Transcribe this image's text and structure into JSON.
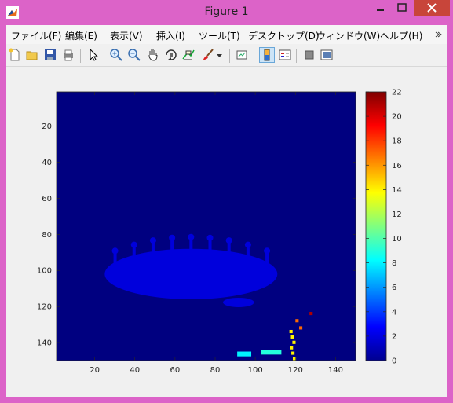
{
  "window": {
    "title": "Figure 1",
    "controls": [
      "minimize",
      "maximize",
      "close"
    ],
    "frame_color": "#dc63c8",
    "close_color": "#c8453a"
  },
  "menu": {
    "items": [
      "ファイル(F)",
      "編集(E)",
      "表示(V)",
      "挿入(I)",
      "ツール(T)",
      "デスクトップ(D)",
      "ウィンドウ(W)",
      "ヘルプ(H)"
    ],
    "overflow_icon": "chevron-icon"
  },
  "toolbar": {
    "icons": [
      "new-figure-icon",
      "open-file-icon",
      "save-icon",
      "print-icon",
      "edit-plot-arrow-icon",
      "zoom-in-icon",
      "zoom-out-icon",
      "pan-hand-icon",
      "rotate-3d-icon",
      "data-cursor-icon",
      "brush-icon",
      "brush-dropdown-icon",
      "link-plot-icon",
      "insert-colorbar-icon",
      "insert-legend-icon",
      "hide-plot-tools-icon",
      "show-plot-tools-icon"
    ],
    "active": "insert-colorbar-icon"
  },
  "chart_data": {
    "type": "heatmap",
    "title": "",
    "xlabel": "",
    "ylabel": "",
    "x_ticks": [
      "20",
      "40",
      "60",
      "80",
      "100",
      "120",
      "140"
    ],
    "y_ticks": [
      "20",
      "40",
      "60",
      "80",
      "100",
      "120",
      "140"
    ],
    "xlim": [
      1,
      150
    ],
    "ylim": [
      1,
      150
    ],
    "y_direction": "reversed",
    "colormap": "jet",
    "clim": [
      0,
      22
    ],
    "colorbar_ticks": [
      "0",
      "2",
      "4",
      "6",
      "8",
      "10",
      "12",
      "14",
      "16",
      "18",
      "20",
      "22"
    ],
    "background_value": 0,
    "regions": [
      {
        "name": "main-blob",
        "value": 2,
        "x_center": 68,
        "y_center": 102,
        "x_halfwidth": 43,
        "y_halfwidth": 14
      },
      {
        "name": "bottom-teal-strip",
        "value": 8,
        "x": [
          91,
          97
        ],
        "y": [
          145,
          146
        ]
      },
      {
        "name": "bottom-lightgreen-strip",
        "value": 9,
        "x": [
          103,
          112
        ],
        "y": [
          144,
          145
        ]
      },
      {
        "name": "red-point",
        "value": 21,
        "x": 127,
        "y": 123
      },
      {
        "name": "orange-points",
        "value": 17,
        "x": [
          120,
          125
        ],
        "y": [
          127,
          131
        ]
      },
      {
        "name": "yellow-points",
        "value": 14,
        "x": [
          117,
          119
        ],
        "y": [
          133,
          148
        ]
      }
    ]
  }
}
